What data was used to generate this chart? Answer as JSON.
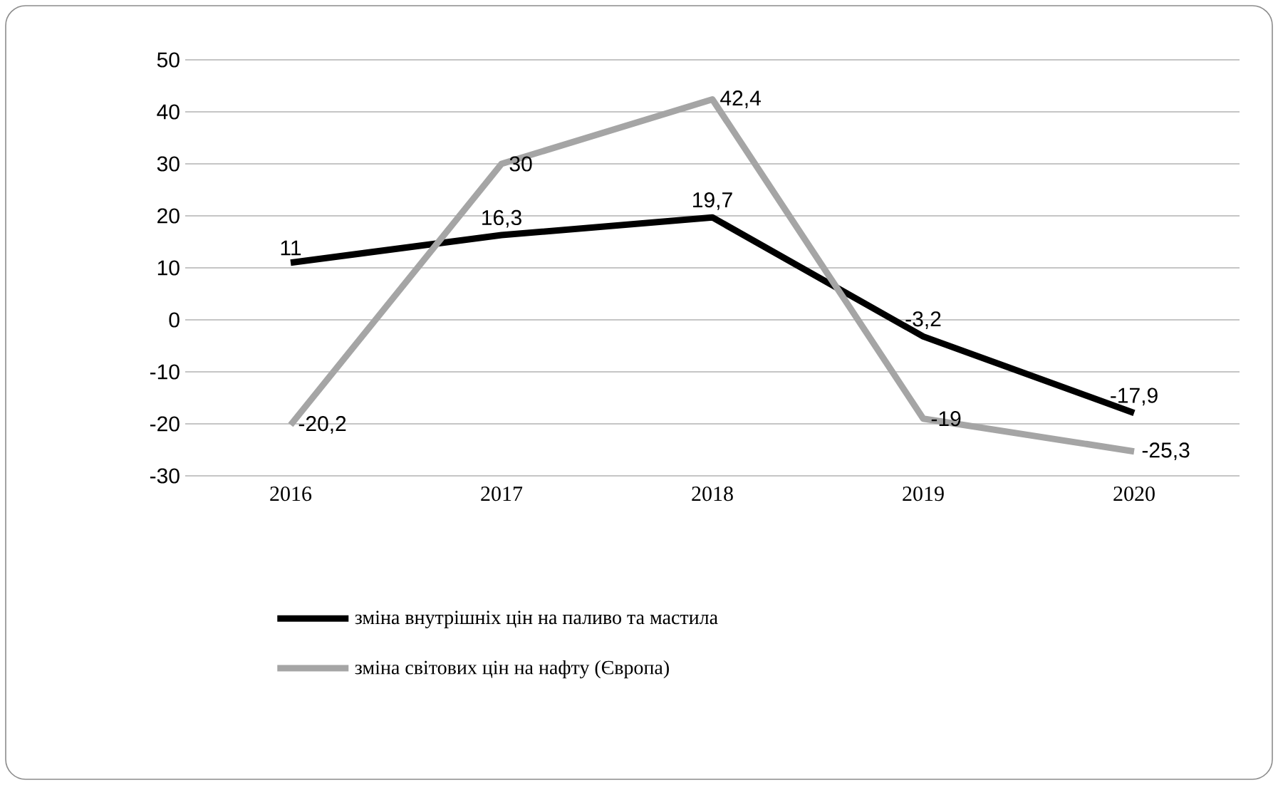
{
  "chart_data": {
    "type": "line",
    "categories": [
      "2016",
      "2017",
      "2018",
      "2019",
      "2020"
    ],
    "series": [
      {
        "name": "зміна внутрішніх цін на паливо та мастила",
        "color": "#000000",
        "values": [
          11,
          16.3,
          19.7,
          -3.2,
          -17.9
        ],
        "value_labels": [
          "11",
          "16,3",
          "19,7",
          "-3,2",
          "-17,9"
        ]
      },
      {
        "name": "зміна світових цін на нафту (Європа)",
        "color": "#a5a5a5",
        "values": [
          -20.2,
          30,
          42.4,
          -19,
          -25.3
        ],
        "value_labels": [
          "-20,2",
          "30",
          "42,4",
          "-19",
          "-25,3"
        ]
      }
    ],
    "ylim": [
      -30,
      50
    ],
    "yticks": [
      -30,
      -20,
      -10,
      0,
      10,
      20,
      30,
      40,
      50
    ],
    "grid": "y",
    "legend": "bottom",
    "marker": "none",
    "line_style": "solid"
  }
}
